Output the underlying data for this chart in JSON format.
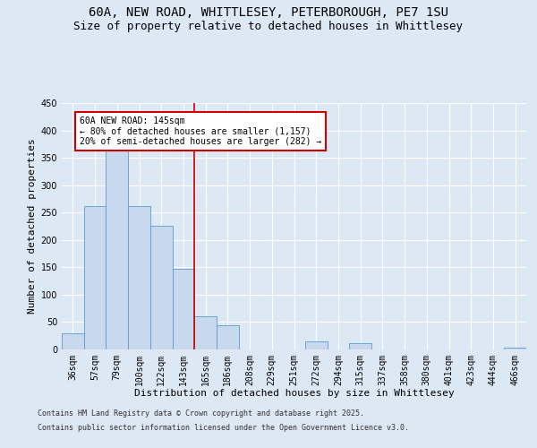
{
  "title1": "60A, NEW ROAD, WHITTLESEY, PETERBOROUGH, PE7 1SU",
  "title2": "Size of property relative to detached houses in Whittlesey",
  "xlabel": "Distribution of detached houses by size in Whittlesey",
  "ylabel": "Number of detached properties",
  "categories": [
    "36sqm",
    "57sqm",
    "79sqm",
    "100sqm",
    "122sqm",
    "143sqm",
    "165sqm",
    "186sqm",
    "208sqm",
    "229sqm",
    "251sqm",
    "272sqm",
    "294sqm",
    "315sqm",
    "337sqm",
    "358sqm",
    "380sqm",
    "401sqm",
    "423sqm",
    "444sqm",
    "466sqm"
  ],
  "values": [
    30,
    262,
    370,
    262,
    226,
    147,
    60,
    44,
    0,
    0,
    0,
    15,
    0,
    12,
    0,
    0,
    0,
    0,
    0,
    0,
    3
  ],
  "bar_color": "#c8d9ed",
  "bar_edge_color": "#5a9bd5",
  "vline_x_idx": 5,
  "vline_color": "#cc0000",
  "annotation_text": "60A NEW ROAD: 145sqm\n← 80% of detached houses are smaller (1,157)\n20% of semi-detached houses are larger (282) →",
  "annotation_box_color": "#cc0000",
  "background_color": "#dde8f5",
  "plot_bg_color": "#dde8f5",
  "ylim": [
    0,
    450
  ],
  "yticks": [
    0,
    50,
    100,
    150,
    200,
    250,
    300,
    350,
    400,
    450
  ],
  "footer1": "Contains HM Land Registry data © Crown copyright and database right 2025.",
  "footer2": "Contains public sector information licensed under the Open Government Licence v3.0.",
  "title_fontsize": 10,
  "title2_fontsize": 9,
  "axis_label_fontsize": 8,
  "tick_fontsize": 7,
  "footer_fontsize": 6,
  "annotation_fontsize": 7
}
